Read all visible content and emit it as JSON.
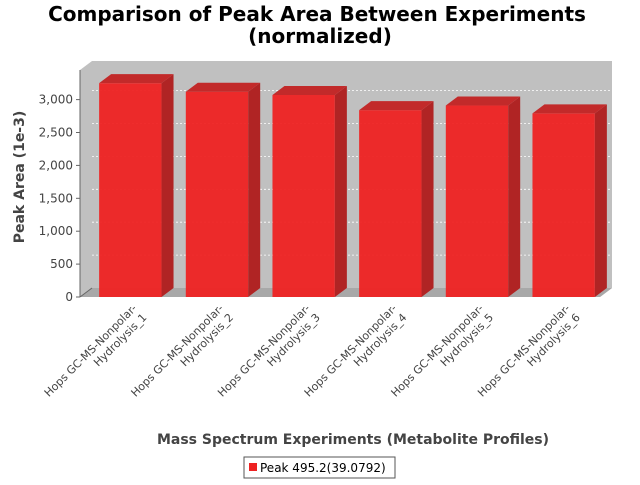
{
  "chart_data": {
    "type": "bar",
    "title_lines": [
      "Comparison of Peak Area Between Experiments",
      "(normalized)"
    ],
    "xlabel": "Mass Spectrum Experiments (Metabolite Profiles)",
    "ylabel": "Peak Area (1e-3)",
    "categories": [
      {
        "line1": "Hops GC-MS-Nonpolar-",
        "line2": "Hydrolysis_1"
      },
      {
        "line1": "Hops GC-MS-Nonpolar-",
        "line2": "Hydrolysis_2"
      },
      {
        "line1": "Hops GC-MS-Nonpolar-",
        "line2": "Hydrolysis_3"
      },
      {
        "line1": "Hops GC-MS-Nonpolar-",
        "line2": "Hydrolysis_4"
      },
      {
        "line1": "Hops GC-MS-Nonpolar-",
        "line2": "Hydrolysis_5"
      },
      {
        "line1": "Hops GC-MS-Nonpolar-",
        "line2": "Hydrolysis_6"
      }
    ],
    "series": [
      {
        "name": "Peak 495.2(39.0792)",
        "color": "#ee2222",
        "values": [
          3250,
          3120,
          3070,
          2840,
          2910,
          2790
        ]
      }
    ],
    "yticks": [
      {
        "value": 0,
        "label": "0"
      },
      {
        "value": 500,
        "label": "500"
      },
      {
        "value": 1000,
        "label": "1,000"
      },
      {
        "value": 1500,
        "label": "1,500"
      },
      {
        "value": 2000,
        "label": "2,000"
      },
      {
        "value": 2500,
        "label": "2,500"
      },
      {
        "value": 3000,
        "label": "3,000"
      }
    ],
    "ylim": [
      0,
      3450
    ],
    "grid": true,
    "legend_position": "bottom",
    "style": "3d-bar"
  }
}
